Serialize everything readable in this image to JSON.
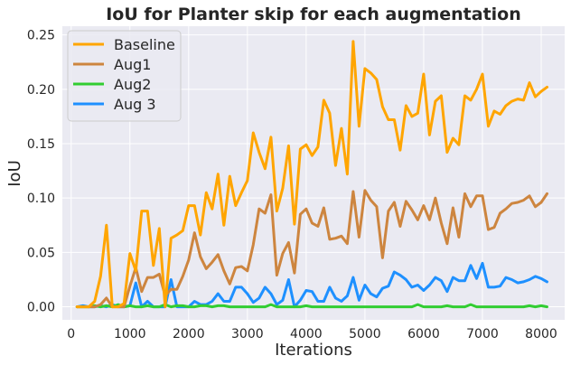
{
  "chart_data": {
    "type": "line",
    "title": "IoU for Planter skip for each augmentation",
    "xlabel": "Iterations",
    "ylabel": "IoU",
    "xlim": [
      -150,
      8400
    ],
    "ylim": [
      -0.012,
      0.258
    ],
    "xticks": [
      0,
      1000,
      2000,
      3000,
      4000,
      5000,
      6000,
      7000,
      8000
    ],
    "yticks": [
      0.0,
      0.05,
      0.1,
      0.15,
      0.2,
      0.25
    ],
    "xtick_labels": [
      "0",
      "1000",
      "2000",
      "3000",
      "4000",
      "5000",
      "6000",
      "7000",
      "8000"
    ],
    "ytick_labels": [
      "0.00",
      "0.05",
      "0.10",
      "0.15",
      "0.20",
      "0.25"
    ],
    "grid": true,
    "legend_position": "upper-left",
    "x": [
      100,
      200,
      300,
      400,
      500,
      600,
      700,
      800,
      900,
      1000,
      1100,
      1200,
      1300,
      1400,
      1500,
      1600,
      1700,
      1800,
      1900,
      2000,
      2100,
      2200,
      2300,
      2400,
      2500,
      2600,
      2700,
      2800,
      2900,
      3000,
      3100,
      3200,
      3300,
      3400,
      3500,
      3600,
      3700,
      3800,
      3900,
      4000,
      4100,
      4200,
      4300,
      4400,
      4500,
      4600,
      4700,
      4800,
      4900,
      5000,
      5100,
      5200,
      5300,
      5400,
      5500,
      5600,
      5700,
      5800,
      5900,
      6000,
      6100,
      6200,
      6300,
      6400,
      6500,
      6600,
      6700,
      6800,
      6900,
      7000,
      7100,
      7200,
      7300,
      7400,
      7500,
      7600,
      7700,
      7800,
      7900,
      8000,
      8100
    ],
    "series": [
      {
        "name": "Baseline",
        "color": "#ffa500",
        "values": [
          0.0,
          0.0,
          0.0,
          0.005,
          0.028,
          0.075,
          0.0,
          0.0,
          0.003,
          0.049,
          0.033,
          0.088,
          0.088,
          0.038,
          0.072,
          0.0,
          0.063,
          0.066,
          0.07,
          0.093,
          0.093,
          0.066,
          0.105,
          0.09,
          0.122,
          0.075,
          0.12,
          0.093,
          0.105,
          0.116,
          0.16,
          0.142,
          0.127,
          0.156,
          0.088,
          0.109,
          0.148,
          0.076,
          0.145,
          0.149,
          0.139,
          0.147,
          0.19,
          0.178,
          0.13,
          0.164,
          0.122,
          0.244,
          0.166,
          0.219,
          0.215,
          0.209,
          0.184,
          0.172,
          0.172,
          0.144,
          0.185,
          0.175,
          0.178,
          0.214,
          0.158,
          0.189,
          0.194,
          0.142,
          0.155,
          0.149,
          0.194,
          0.19,
          0.2,
          0.214,
          0.166,
          0.18,
          0.177,
          0.185,
          0.189,
          0.191,
          0.19,
          0.206,
          0.193,
          0.198,
          0.202
        ]
      },
      {
        "name": "Aug1",
        "color": "#cd853f",
        "values": [
          0.0,
          0.0,
          0.0,
          0.0,
          0.002,
          0.008,
          0.0,
          0.0,
          0.0,
          0.019,
          0.036,
          0.014,
          0.027,
          0.027,
          0.03,
          0.01,
          0.016,
          0.016,
          0.028,
          0.043,
          0.068,
          0.046,
          0.035,
          0.041,
          0.048,
          0.033,
          0.021,
          0.036,
          0.037,
          0.033,
          0.057,
          0.09,
          0.086,
          0.103,
          0.029,
          0.049,
          0.059,
          0.031,
          0.085,
          0.09,
          0.077,
          0.074,
          0.091,
          0.062,
          0.063,
          0.065,
          0.058,
          0.106,
          0.064,
          0.107,
          0.098,
          0.092,
          0.045,
          0.088,
          0.096,
          0.074,
          0.097,
          0.089,
          0.08,
          0.093,
          0.08,
          0.1,
          0.077,
          0.058,
          0.091,
          0.064,
          0.104,
          0.092,
          0.102,
          0.102,
          0.071,
          0.073,
          0.086,
          0.09,
          0.095,
          0.096,
          0.098,
          0.102,
          0.092,
          0.096,
          0.104
        ]
      },
      {
        "name": "Aug2",
        "color": "#32cd32",
        "values": [
          0.0,
          0.0,
          0.0,
          0.001,
          0.0,
          0.001,
          0.0,
          0.002,
          0.0,
          0.001,
          0.0,
          0.0,
          0.001,
          0.0,
          0.0,
          0.002,
          0.0,
          0.001,
          0.001,
          0.0,
          0.0,
          0.001,
          0.001,
          0.0,
          0.001,
          0.001,
          0.0,
          0.0,
          0.0,
          0.0,
          0.0,
          0.0,
          0.0,
          0.002,
          0.0,
          0.0,
          0.0,
          0.0,
          0.0,
          0.001,
          0.0,
          0.0,
          0.0,
          0.0,
          0.0,
          0.0,
          0.0,
          0.0,
          0.0,
          0.0,
          0.0,
          0.0,
          0.0,
          0.0,
          0.0,
          0.0,
          0.0,
          0.0,
          0.002,
          0.0,
          0.0,
          0.0,
          0.0,
          0.001,
          0.0,
          0.0,
          0.0,
          0.002,
          0.0,
          0.0,
          0.0,
          0.0,
          0.0,
          0.0,
          0.0,
          0.0,
          0.0,
          0.001,
          0.0,
          0.001,
          0.0
        ]
      },
      {
        "name": "Aug 3",
        "color": "#1e90ff",
        "values": [
          0.0,
          0.001,
          0.0,
          0.0,
          0.001,
          0.0,
          0.002,
          0.0,
          0.0,
          0.001,
          0.022,
          0.0,
          0.005,
          0.0,
          0.0,
          0.0,
          0.025,
          0.0,
          0.0,
          0.0,
          0.005,
          0.002,
          0.002,
          0.005,
          0.012,
          0.005,
          0.005,
          0.018,
          0.018,
          0.012,
          0.004,
          0.008,
          0.018,
          0.012,
          0.002,
          0.006,
          0.025,
          0.0,
          0.006,
          0.015,
          0.014,
          0.005,
          0.005,
          0.018,
          0.008,
          0.005,
          0.01,
          0.027,
          0.006,
          0.02,
          0.012,
          0.009,
          0.017,
          0.019,
          0.032,
          0.029,
          0.025,
          0.018,
          0.02,
          0.015,
          0.02,
          0.027,
          0.024,
          0.014,
          0.027,
          0.024,
          0.024,
          0.038,
          0.026,
          0.04,
          0.018,
          0.018,
          0.019,
          0.027,
          0.025,
          0.022,
          0.023,
          0.025,
          0.028,
          0.026,
          0.023
        ]
      }
    ]
  }
}
